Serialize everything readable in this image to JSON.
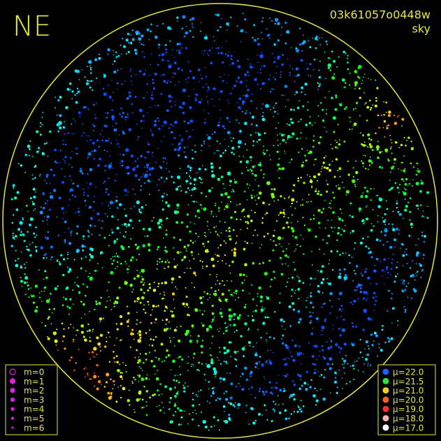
{
  "title": "NE",
  "image_id": "03k61057o0448w",
  "band": "sky",
  "magnitude_legend": [
    "m=0",
    "m=1",
    "m=2",
    "m=3",
    "m=4",
    "m=5",
    "m=6"
  ],
  "brightness_legend": [
    "μ=22.0",
    "μ=21.5",
    "μ=21.0",
    "μ=20.0",
    "μ=19.0",
    "μ=18.0",
    "μ=17.0"
  ]
}
